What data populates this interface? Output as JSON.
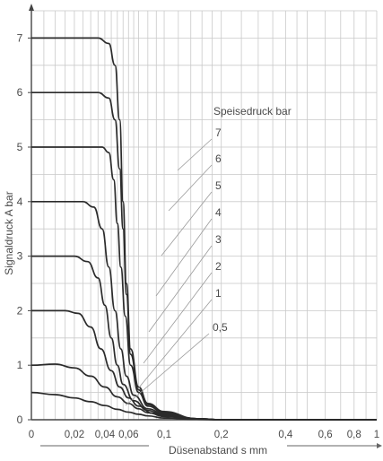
{
  "chart_data": {
    "type": "line",
    "xlabel": "Düsenabstand s mm",
    "ylabel": "Signaldruck A bar",
    "x_scale": "log1p",
    "ylim": [
      0,
      7.5
    ],
    "grid": true,
    "legend_title": "Speisedruck bar",
    "y_ticks": [
      {
        "value": 0,
        "label": "0"
      },
      {
        "value": 1,
        "label": "1"
      },
      {
        "value": 2,
        "label": "2"
      },
      {
        "value": 3,
        "label": "3"
      },
      {
        "value": 4,
        "label": "4"
      },
      {
        "value": 5,
        "label": "5"
      },
      {
        "value": 6,
        "label": "6"
      },
      {
        "value": 7,
        "label": "7"
      }
    ],
    "x_ticks": [
      {
        "value": 0,
        "label": "0"
      },
      {
        "value": 0.02,
        "label": "0,02"
      },
      {
        "value": 0.04,
        "label": "0,04"
      },
      {
        "value": 0.06,
        "label": "0,06"
      },
      {
        "value": 0.1,
        "label": "0,1"
      },
      {
        "value": 0.2,
        "label": "0,2"
      },
      {
        "value": 0.4,
        "label": "0,4"
      },
      {
        "value": 0.6,
        "label": "0,6"
      },
      {
        "value": 0.8,
        "label": "0,8"
      },
      {
        "value": 1,
        "label": "1"
      }
    ],
    "x_gridlines": [
      0.005,
      0.01,
      0.015,
      0.02,
      0.025,
      0.03,
      0.035,
      0.04,
      0.045,
      0.05,
      0.055,
      0.06,
      0.065,
      0.07,
      0.08,
      0.09,
      0.1,
      0.12,
      0.14,
      0.16,
      0.18,
      0.2,
      0.25,
      0.3,
      0.35,
      0.4,
      0.45,
      0.5,
      0.6,
      0.7,
      0.8,
      0.9,
      1.0
    ],
    "series": [
      {
        "name": "7",
        "points": [
          [
            0,
            7
          ],
          [
            0.035,
            7
          ],
          [
            0.043,
            6.9
          ],
          [
            0.048,
            6.5
          ],
          [
            0.052,
            5.5
          ],
          [
            0.055,
            4.0
          ],
          [
            0.058,
            2.5
          ],
          [
            0.062,
            1.3
          ],
          [
            0.07,
            0.6
          ],
          [
            0.08,
            0.3
          ],
          [
            0.1,
            0.15
          ],
          [
            0.15,
            0.02
          ],
          [
            0.2,
            0
          ],
          [
            1,
            0
          ]
        ]
      },
      {
        "name": "6",
        "points": [
          [
            0,
            6
          ],
          [
            0.035,
            6
          ],
          [
            0.043,
            5.9
          ],
          [
            0.048,
            5.5
          ],
          [
            0.052,
            4.6
          ],
          [
            0.055,
            3.5
          ],
          [
            0.058,
            2.3
          ],
          [
            0.062,
            1.2
          ],
          [
            0.07,
            0.55
          ],
          [
            0.08,
            0.28
          ],
          [
            0.1,
            0.13
          ],
          [
            0.15,
            0.02
          ],
          [
            0.2,
            0
          ],
          [
            1,
            0
          ]
        ]
      },
      {
        "name": "5",
        "points": [
          [
            0,
            5
          ],
          [
            0.038,
            5
          ],
          [
            0.043,
            4.9
          ],
          [
            0.047,
            4.4
          ],
          [
            0.05,
            3.6
          ],
          [
            0.053,
            2.8
          ],
          [
            0.057,
            1.9
          ],
          [
            0.062,
            1.0
          ],
          [
            0.07,
            0.5
          ],
          [
            0.08,
            0.25
          ],
          [
            0.1,
            0.12
          ],
          [
            0.15,
            0.02
          ],
          [
            0.2,
            0
          ],
          [
            1,
            0
          ]
        ]
      },
      {
        "name": "4",
        "points": [
          [
            0,
            4
          ],
          [
            0.025,
            4
          ],
          [
            0.032,
            3.9
          ],
          [
            0.038,
            3.5
          ],
          [
            0.043,
            2.8
          ],
          [
            0.048,
            2.0
          ],
          [
            0.053,
            1.3
          ],
          [
            0.058,
            0.8
          ],
          [
            0.065,
            0.45
          ],
          [
            0.08,
            0.2
          ],
          [
            0.1,
            0.1
          ],
          [
            0.15,
            0.02
          ],
          [
            0.2,
            0
          ],
          [
            1,
            0
          ]
        ]
      },
      {
        "name": "3",
        "points": [
          [
            0,
            3
          ],
          [
            0.02,
            3
          ],
          [
            0.028,
            2.9
          ],
          [
            0.035,
            2.6
          ],
          [
            0.04,
            2.1
          ],
          [
            0.045,
            1.5
          ],
          [
            0.05,
            1.0
          ],
          [
            0.055,
            0.65
          ],
          [
            0.065,
            0.35
          ],
          [
            0.08,
            0.17
          ],
          [
            0.1,
            0.08
          ],
          [
            0.15,
            0.01
          ],
          [
            0.2,
            0
          ],
          [
            1,
            0
          ]
        ]
      },
      {
        "name": "2",
        "points": [
          [
            0,
            2
          ],
          [
            0.015,
            2
          ],
          [
            0.022,
            1.95
          ],
          [
            0.03,
            1.7
          ],
          [
            0.037,
            1.3
          ],
          [
            0.045,
            0.9
          ],
          [
            0.052,
            0.6
          ],
          [
            0.06,
            0.4
          ],
          [
            0.07,
            0.25
          ],
          [
            0.085,
            0.12
          ],
          [
            0.1,
            0.06
          ],
          [
            0.15,
            0.01
          ],
          [
            0.2,
            0
          ],
          [
            1,
            0
          ]
        ]
      },
      {
        "name": "1",
        "points": [
          [
            0,
            1
          ],
          [
            0.01,
            1.02
          ],
          [
            0.02,
            0.95
          ],
          [
            0.03,
            0.8
          ],
          [
            0.04,
            0.6
          ],
          [
            0.05,
            0.42
          ],
          [
            0.06,
            0.3
          ],
          [
            0.07,
            0.2
          ],
          [
            0.08,
            0.13
          ],
          [
            0.1,
            0.06
          ],
          [
            0.15,
            0.01
          ],
          [
            0.2,
            0
          ],
          [
            1,
            0
          ]
        ]
      },
      {
        "name": "0,5",
        "points": [
          [
            0,
            0.5
          ],
          [
            0.01,
            0.46
          ],
          [
            0.02,
            0.4
          ],
          [
            0.03,
            0.33
          ],
          [
            0.04,
            0.26
          ],
          [
            0.05,
            0.19
          ],
          [
            0.06,
            0.14
          ],
          [
            0.07,
            0.1
          ],
          [
            0.08,
            0.07
          ],
          [
            0.1,
            0.03
          ],
          [
            0.15,
            0.005
          ],
          [
            0.2,
            0
          ],
          [
            1,
            0
          ]
        ]
      }
    ],
    "legend_labels": [
      {
        "text": "7",
        "anchor_series": "7"
      },
      {
        "text": "6",
        "anchor_series": "6"
      },
      {
        "text": "5",
        "anchor_series": "5"
      },
      {
        "text": "4",
        "anchor_series": "4"
      },
      {
        "text": "3",
        "anchor_series": "3"
      },
      {
        "text": "2",
        "anchor_series": "2"
      },
      {
        "text": "1",
        "anchor_series": "1"
      },
      {
        "text": "0,5",
        "anchor_series": "0,5"
      }
    ]
  }
}
